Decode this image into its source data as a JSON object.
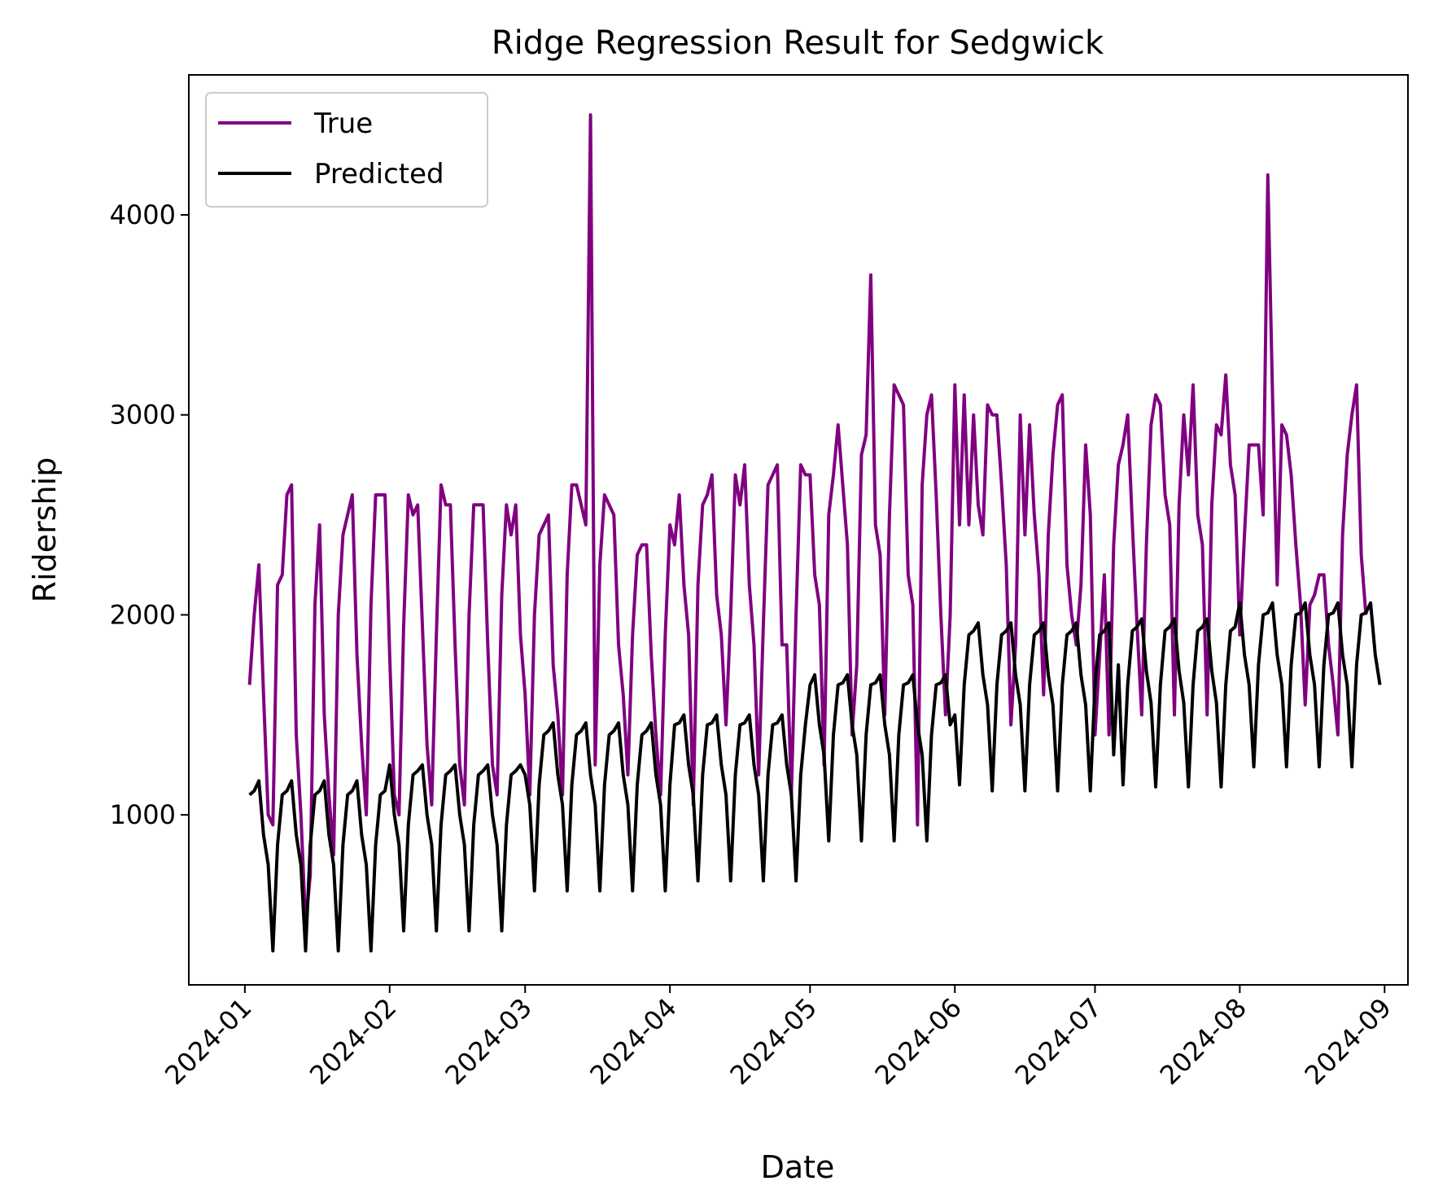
{
  "chart_data": {
    "type": "line",
    "title": "Ridge Regression Result for Sedgwick",
    "xlabel": "Date",
    "ylabel": "Ridership",
    "xlim": [
      "2023-12-20",
      "2024-09-06"
    ],
    "ylim": [
      150,
      4700
    ],
    "x_ticks": [
      "2024-01",
      "2024-02",
      "2024-03",
      "2024-04",
      "2024-05",
      "2024-06",
      "2024-07",
      "2024-08",
      "2024-09"
    ],
    "y_ticks": [
      1000,
      2000,
      3000,
      4000
    ],
    "grid": false,
    "legend": "upper-left",
    "start_date": "2024-01-02",
    "series": [
      {
        "name": "True",
        "color": "#800080",
        "values": [
          1650,
          2000,
          2250,
          1600,
          1000,
          950,
          2150,
          2200,
          2600,
          2650,
          1400,
          1000,
          450,
          700,
          2050,
          2450,
          1500,
          1100,
          800,
          2000,
          2400,
          2500,
          2600,
          1800,
          1350,
          1000,
          2050,
          2600,
          2600,
          2600,
          1800,
          1100,
          1000,
          1950,
          2600,
          2500,
          2550,
          1950,
          1350,
          1050,
          1900,
          2650,
          2550,
          2550,
          1850,
          1250,
          1050,
          2000,
          2550,
          2550,
          2550,
          1850,
          1250,
          1100,
          2100,
          2550,
          2400,
          2550,
          1900,
          1600,
          1100,
          2000,
          2400,
          2450,
          2500,
          1750,
          1500,
          1100,
          2200,
          2650,
          2650,
          2550,
          2450,
          4500,
          1250,
          2250,
          2600,
          2550,
          2500,
          1850,
          1600,
          1200,
          1900,
          2300,
          2350,
          2350,
          1800,
          1400,
          1100,
          1900,
          2450,
          2350,
          2600,
          2150,
          1900,
          1050,
          2150,
          2550,
          2600,
          2700,
          2100,
          1900,
          1450,
          2000,
          2700,
          2550,
          2750,
          2150,
          1850,
          1200,
          1950,
          2650,
          2700,
          2750,
          1850,
          1850,
          1100,
          2000,
          2750,
          2700,
          2700,
          2200,
          2050,
          1250,
          2500,
          2700,
          2950,
          2650,
          2350,
          1400,
          1750,
          2800,
          2900,
          3700,
          2450,
          2300,
          1500,
          2500,
          3150,
          3100,
          3050,
          2200,
          2050,
          950,
          2650,
          3000,
          3100,
          2600,
          2000,
          1500,
          2000,
          3150,
          2450,
          3100,
          2450,
          3000,
          2550,
          2400,
          3050,
          3000,
          3000,
          2650,
          2250,
          1450,
          1850,
          3000,
          2400,
          2950,
          2500,
          2200,
          1600,
          2400,
          2800,
          3050,
          3100,
          2250,
          2000,
          1850,
          2150,
          2850,
          2500,
          1400,
          1800,
          2200,
          1400,
          2350,
          2750,
          2850,
          3000,
          2450,
          1950,
          1500,
          2350,
          2950,
          3100,
          3050,
          2600,
          2450,
          1500,
          2550,
          3000,
          2700,
          3150,
          2500,
          2350,
          1500,
          2550,
          2950,
          2900,
          3200,
          2750,
          2600,
          1900,
          2400,
          2850,
          2850,
          2850,
          2500,
          4200,
          3100,
          2150,
          2950,
          2900,
          2700,
          2350,
          2050,
          1550,
          2050,
          2100,
          2200,
          2200,
          1850,
          1650,
          1400,
          2400,
          2800,
          3000,
          3150,
          2300,
          2000
        ]
      },
      {
        "name": "Predicted",
        "color": "#000000",
        "values": [
          1100,
          1120,
          1170,
          900,
          750,
          320,
          850,
          1100,
          1120,
          1170,
          900,
          750,
          320,
          850,
          1100,
          1120,
          1170,
          900,
          750,
          320,
          850,
          1100,
          1120,
          1170,
          900,
          750,
          320,
          850,
          1100,
          1120,
          1250,
          1000,
          850,
          420,
          950,
          1200,
          1220,
          1250,
          1000,
          850,
          420,
          950,
          1200,
          1220,
          1250,
          1000,
          850,
          420,
          950,
          1200,
          1220,
          1250,
          1000,
          850,
          420,
          950,
          1200,
          1220,
          1250,
          1200,
          1050,
          620,
          1150,
          1400,
          1420,
          1460,
          1200,
          1050,
          620,
          1150,
          1400,
          1420,
          1460,
          1200,
          1050,
          620,
          1150,
          1400,
          1420,
          1460,
          1200,
          1050,
          620,
          1150,
          1400,
          1420,
          1460,
          1200,
          1050,
          620,
          1150,
          1450,
          1460,
          1500,
          1250,
          1100,
          670,
          1200,
          1450,
          1460,
          1500,
          1250,
          1100,
          670,
          1200,
          1450,
          1460,
          1500,
          1250,
          1100,
          670,
          1200,
          1450,
          1460,
          1500,
          1250,
          1100,
          670,
          1200,
          1450,
          1650,
          1700,
          1450,
          1300,
          870,
          1400,
          1650,
          1660,
          1700,
          1450,
          1300,
          870,
          1400,
          1650,
          1660,
          1700,
          1450,
          1300,
          870,
          1400,
          1650,
          1660,
          1700,
          1450,
          1300,
          870,
          1400,
          1650,
          1660,
          1700,
          1450,
          1500,
          1150,
          1650,
          1900,
          1920,
          1960,
          1700,
          1550,
          1120,
          1650,
          1900,
          1920,
          1960,
          1700,
          1550,
          1120,
          1650,
          1900,
          1920,
          1960,
          1700,
          1550,
          1120,
          1650,
          1900,
          1920,
          1960,
          1700,
          1550,
          1120,
          1650,
          1900,
          1920,
          1960,
          1300,
          1750,
          1150,
          1650,
          1920,
          1940,
          1980,
          1720,
          1560,
          1140,
          1650,
          1920,
          1940,
          1980,
          1720,
          1560,
          1140,
          1650,
          1920,
          1940,
          1980,
          1720,
          1560,
          1140,
          1650,
          1920,
          1940,
          2060,
          1800,
          1650,
          1240,
          1750,
          2000,
          2010,
          2060,
          1800,
          1650,
          1240,
          1750,
          2000,
          2010,
          2060,
          1800,
          1650,
          1240,
          1750,
          2000,
          2010,
          2060,
          1800,
          1650,
          1240,
          1750,
          2000,
          2010,
          2060,
          1800,
          1650
        ]
      }
    ]
  }
}
